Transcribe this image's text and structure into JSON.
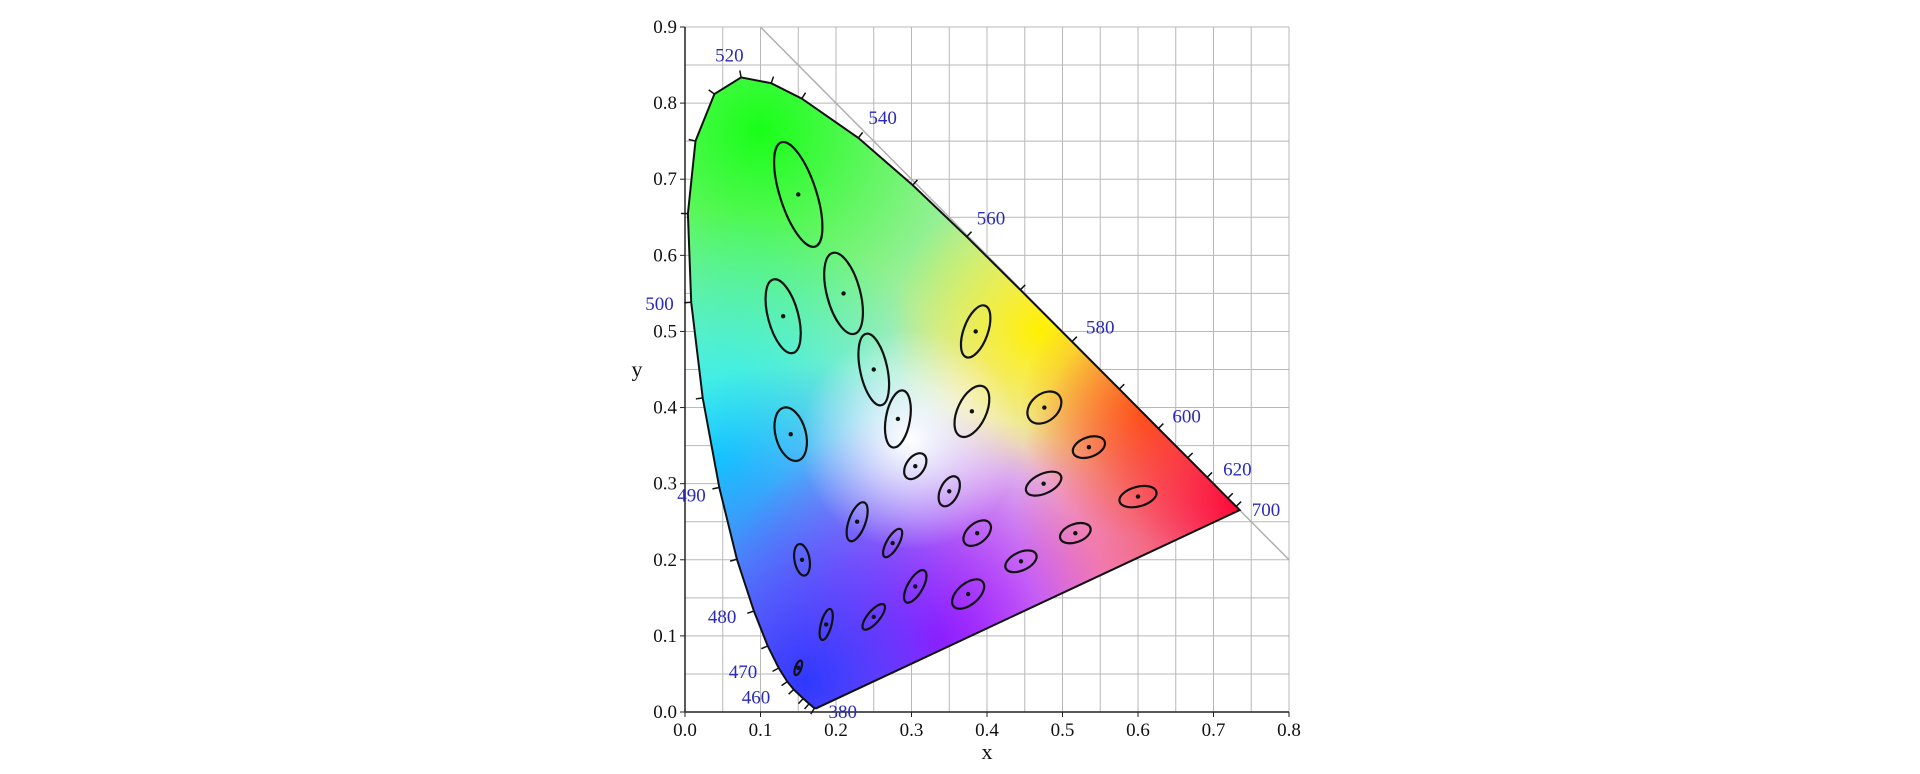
{
  "chart_data": {
    "type": "scatter",
    "title": "",
    "xlabel": "x",
    "ylabel": "y",
    "xlim": [
      0.0,
      0.8
    ],
    "ylim": [
      0.0,
      0.9
    ],
    "xticks": [
      "0.0",
      "0.1",
      "0.2",
      "0.3",
      "0.4",
      "0.5",
      "0.6",
      "0.7",
      "0.8"
    ],
    "yticks": [
      "0.0",
      "0.1",
      "0.2",
      "0.3",
      "0.4",
      "0.5",
      "0.6",
      "0.7",
      "0.8",
      "0.9"
    ],
    "grid": true,
    "spectral_locus": [
      {
        "nm": 380,
        "x": 0.1741,
        "y": 0.005
      },
      {
        "nm": 420,
        "x": 0.1714,
        "y": 0.0051
      },
      {
        "nm": 440,
        "x": 0.1644,
        "y": 0.0109
      },
      {
        "nm": 450,
        "x": 0.1566,
        "y": 0.0177
      },
      {
        "nm": 460,
        "x": 0.144,
        "y": 0.0297
      },
      {
        "nm": 465,
        "x": 0.1355,
        "y": 0.0399
      },
      {
        "nm": 470,
        "x": 0.1241,
        "y": 0.0578
      },
      {
        "nm": 475,
        "x": 0.1096,
        "y": 0.0868
      },
      {
        "nm": 480,
        "x": 0.0913,
        "y": 0.1327
      },
      {
        "nm": 485,
        "x": 0.0687,
        "y": 0.2007
      },
      {
        "nm": 490,
        "x": 0.0454,
        "y": 0.295
      },
      {
        "nm": 495,
        "x": 0.0235,
        "y": 0.4127
      },
      {
        "nm": 500,
        "x": 0.0082,
        "y": 0.5384
      },
      {
        "nm": 505,
        "x": 0.0039,
        "y": 0.6548
      },
      {
        "nm": 510,
        "x": 0.0139,
        "y": 0.7502
      },
      {
        "nm": 515,
        "x": 0.0389,
        "y": 0.812
      },
      {
        "nm": 520,
        "x": 0.0743,
        "y": 0.8338
      },
      {
        "nm": 525,
        "x": 0.1142,
        "y": 0.8262
      },
      {
        "nm": 530,
        "x": 0.1547,
        "y": 0.8059
      },
      {
        "nm": 540,
        "x": 0.2296,
        "y": 0.7543
      },
      {
        "nm": 550,
        "x": 0.3016,
        "y": 0.6923
      },
      {
        "nm": 560,
        "x": 0.3731,
        "y": 0.6245
      },
      {
        "nm": 570,
        "x": 0.4441,
        "y": 0.5547
      },
      {
        "nm": 580,
        "x": 0.5125,
        "y": 0.4866
      },
      {
        "nm": 590,
        "x": 0.5752,
        "y": 0.4242
      },
      {
        "nm": 600,
        "x": 0.627,
        "y": 0.3725
      },
      {
        "nm": 610,
        "x": 0.6658,
        "y": 0.334
      },
      {
        "nm": 620,
        "x": 0.6915,
        "y": 0.3083
      },
      {
        "nm": 640,
        "x": 0.719,
        "y": 0.2809
      },
      {
        "nm": 660,
        "x": 0.73,
        "y": 0.27
      },
      {
        "nm": 700,
        "x": 0.7347,
        "y": 0.2653
      }
    ],
    "wavelength_labels": [
      {
        "text": "520",
        "nm": 520
      },
      {
        "text": "540",
        "nm": 540
      },
      {
        "text": "560",
        "nm": 560
      },
      {
        "text": "580",
        "nm": 580
      },
      {
        "text": "600",
        "nm": 600
      },
      {
        "text": "620",
        "nm": 620
      },
      {
        "text": "700",
        "nm": 700
      },
      {
        "text": "500",
        "nm": 500
      },
      {
        "text": "490",
        "nm": 490
      },
      {
        "text": "480",
        "nm": 480
      },
      {
        "text": "470",
        "nm": 470
      },
      {
        "text": "460",
        "nm": 460
      },
      {
        "text": "380",
        "nm": 380
      }
    ],
    "ellipses": [
      {
        "x": 0.15,
        "y": 0.68,
        "rx": 0.024,
        "ry": 0.072,
        "angle": -18
      },
      {
        "x": 0.21,
        "y": 0.55,
        "rx": 0.022,
        "ry": 0.055,
        "angle": -15
      },
      {
        "x": 0.13,
        "y": 0.52,
        "rx": 0.02,
        "ry": 0.05,
        "angle": -15
      },
      {
        "x": 0.25,
        "y": 0.45,
        "rx": 0.018,
        "ry": 0.048,
        "angle": -12
      },
      {
        "x": 0.385,
        "y": 0.5,
        "rx": 0.016,
        "ry": 0.036,
        "angle": 20
      },
      {
        "x": 0.14,
        "y": 0.365,
        "rx": 0.02,
        "ry": 0.036,
        "angle": -15
      },
      {
        "x": 0.282,
        "y": 0.385,
        "rx": 0.016,
        "ry": 0.038,
        "angle": 10
      },
      {
        "x": 0.38,
        "y": 0.395,
        "rx": 0.019,
        "ry": 0.036,
        "angle": 25
      },
      {
        "x": 0.476,
        "y": 0.4,
        "rx": 0.018,
        "ry": 0.025,
        "angle": 50
      },
      {
        "x": 0.305,
        "y": 0.323,
        "rx": 0.012,
        "ry": 0.019,
        "angle": 35
      },
      {
        "x": 0.535,
        "y": 0.348,
        "rx": 0.013,
        "ry": 0.022,
        "angle": 70
      },
      {
        "x": 0.35,
        "y": 0.29,
        "rx": 0.012,
        "ry": 0.021,
        "angle": 25
      },
      {
        "x": 0.475,
        "y": 0.3,
        "rx": 0.013,
        "ry": 0.025,
        "angle": 65
      },
      {
        "x": 0.228,
        "y": 0.25,
        "rx": 0.011,
        "ry": 0.027,
        "angle": 20
      },
      {
        "x": 0.6,
        "y": 0.283,
        "rx": 0.013,
        "ry": 0.025,
        "angle": 75
      },
      {
        "x": 0.387,
        "y": 0.235,
        "rx": 0.013,
        "ry": 0.021,
        "angle": 50
      },
      {
        "x": 0.275,
        "y": 0.222,
        "rx": 0.008,
        "ry": 0.021,
        "angle": 30
      },
      {
        "x": 0.517,
        "y": 0.235,
        "rx": 0.012,
        "ry": 0.021,
        "angle": 70
      },
      {
        "x": 0.155,
        "y": 0.2,
        "rx": 0.01,
        "ry": 0.021,
        "angle": -10
      },
      {
        "x": 0.445,
        "y": 0.198,
        "rx": 0.012,
        "ry": 0.022,
        "angle": 65
      },
      {
        "x": 0.305,
        "y": 0.165,
        "rx": 0.01,
        "ry": 0.024,
        "angle": 30
      },
      {
        "x": 0.375,
        "y": 0.155,
        "rx": 0.014,
        "ry": 0.025,
        "angle": 50
      },
      {
        "x": 0.187,
        "y": 0.115,
        "rx": 0.007,
        "ry": 0.021,
        "angle": 15
      },
      {
        "x": 0.25,
        "y": 0.125,
        "rx": 0.008,
        "ry": 0.021,
        "angle": 40
      },
      {
        "x": 0.15,
        "y": 0.058,
        "rx": 0.004,
        "ry": 0.01,
        "angle": 20
      }
    ]
  }
}
